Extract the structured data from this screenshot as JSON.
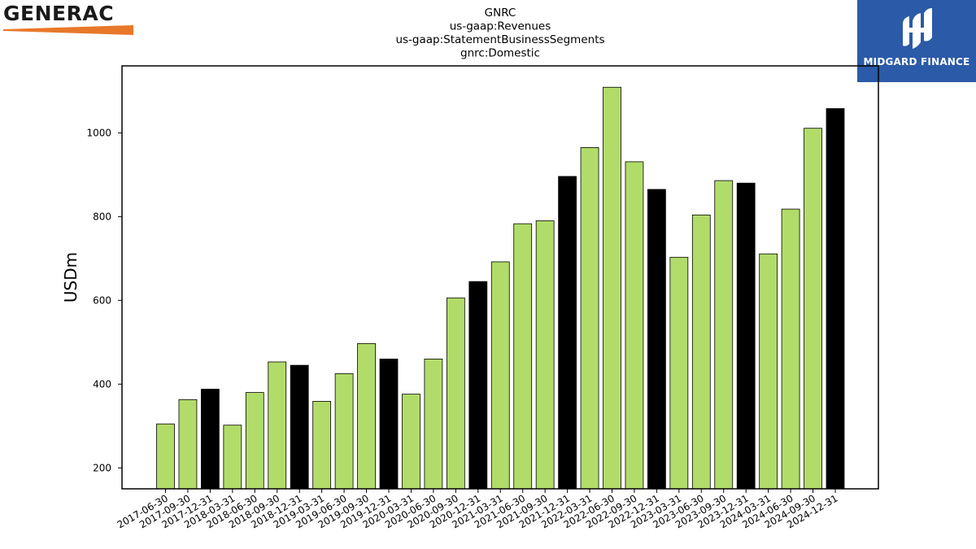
{
  "logos": {
    "left_text": "GENERAC",
    "right_text": "MIDGARD FINANCE"
  },
  "colors": {
    "bar_quarter": "#b2dc6a",
    "bar_year_end": "#000000",
    "logo_swoosh": "#e8782a",
    "logo_right_bg": "#2b5aa8"
  },
  "chart_data": {
    "type": "bar",
    "title": [
      "GNRC",
      "us-gaap:Revenues",
      "us-gaap:StatementBusinessSegments",
      "gnrc:Domestic"
    ],
    "xlabel": "",
    "ylabel": "USDm",
    "ylim": [
      150,
      1160
    ],
    "yticks": [
      200,
      400,
      600,
      800,
      1000
    ],
    "grid": false,
    "categories": [
      "2017-06-30",
      "2017-09-30",
      "2017-12-31",
      "2018-03-31",
      "2018-06-30",
      "2018-09-30",
      "2018-12-31",
      "2019-03-31",
      "2019-06-30",
      "2019-09-30",
      "2019-12-31",
      "2020-03-31",
      "2020-06-30",
      "2020-09-30",
      "2020-12-31",
      "2021-03-31",
      "2021-06-30",
      "2021-09-30",
      "2021-12-31",
      "2022-03-31",
      "2022-06-30",
      "2022-09-30",
      "2022-12-31",
      "2023-03-31",
      "2023-06-30",
      "2023-09-30",
      "2023-12-31",
      "2024-03-31",
      "2024-06-30",
      "2024-09-30",
      "2024-12-31"
    ],
    "values": [
      305,
      363,
      388,
      302,
      380,
      453,
      445,
      359,
      425,
      497,
      460,
      376,
      460,
      606,
      645,
      692,
      783,
      790,
      896,
      965,
      1109,
      931,
      865,
      703,
      804,
      886,
      880,
      711,
      818,
      1011,
      1058
    ]
  }
}
